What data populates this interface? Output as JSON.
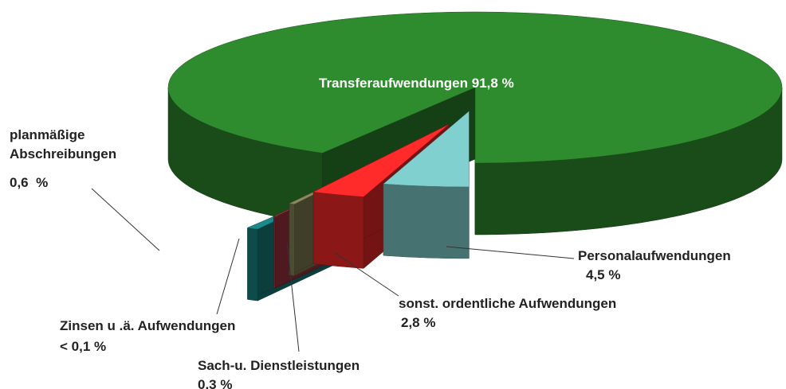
{
  "chart_data": {
    "type": "pie3d",
    "categories": [
      "Personalaufwendungen",
      "sonst. ordentliche Aufwendungen",
      "Sach-u. Dienstleistungen",
      "Zinsen u .ä. Aufwendungen",
      "planmäßige Abschreibungen",
      "Transferaufwendungen"
    ],
    "values": [
      4.5,
      2.8,
      0.3,
      0.1,
      0.6,
      91.8
    ],
    "value_labels": [
      "4,5 %",
      "2,8 %",
      "0,3 %",
      "< 0,1 %",
      "0,6  %",
      "91,8 %"
    ],
    "colors": [
      "#80d0d0",
      "#ff2a2a",
      "#8b8b5a",
      "#b03848",
      "#1a8a8a",
      "#2e8b2e"
    ]
  }
}
